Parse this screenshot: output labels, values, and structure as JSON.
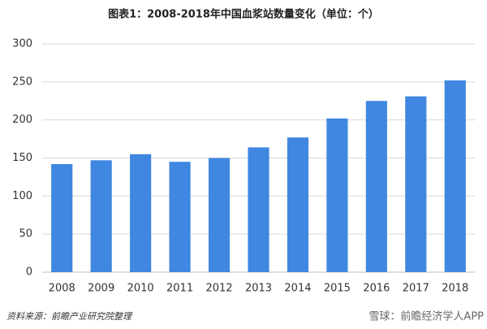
{
  "chart_data": {
    "type": "bar",
    "title": "图表1：2008-2018年中国血浆站数量变化（单位：个）",
    "categories": [
      "2008",
      "2009",
      "2010",
      "2011",
      "2012",
      "2013",
      "2014",
      "2015",
      "2016",
      "2017",
      "2018"
    ],
    "values": [
      142,
      147,
      155,
      145,
      150,
      164,
      177,
      202,
      225,
      231,
      252
    ],
    "color": "#3f87e0",
    "ylim": [
      0,
      300
    ],
    "yticks": [
      0,
      50,
      100,
      150,
      200,
      250,
      300
    ],
    "grid": true,
    "source": "资料来源：前瞻产业研究院整理",
    "watermark": "雪球：前瞻经济学人APP"
  }
}
